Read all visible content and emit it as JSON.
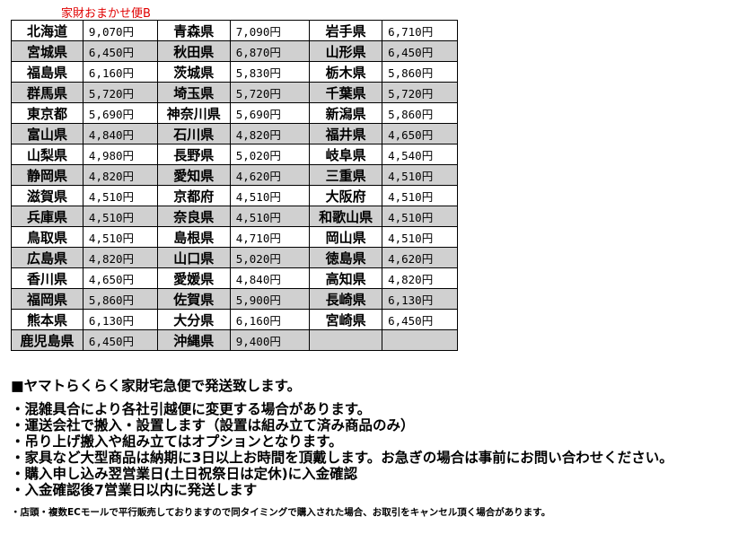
{
  "title": "家財おまかせ便B",
  "rows": [
    [
      [
        "北海道",
        "9,070円"
      ],
      [
        "青森県",
        "7,090円"
      ],
      [
        "岩手県",
        "6,710円"
      ]
    ],
    [
      [
        "宮城県",
        "6,450円"
      ],
      [
        "秋田県",
        "6,870円"
      ],
      [
        "山形県",
        "6,450円"
      ]
    ],
    [
      [
        "福島県",
        "6,160円"
      ],
      [
        "茨城県",
        "5,830円"
      ],
      [
        "栃木県",
        "5,860円"
      ]
    ],
    [
      [
        "群馬県",
        "5,720円"
      ],
      [
        "埼玉県",
        "5,720円"
      ],
      [
        "千葉県",
        "5,720円"
      ]
    ],
    [
      [
        "東京都",
        "5,690円"
      ],
      [
        "神奈川県",
        "5,690円"
      ],
      [
        "新潟県",
        "5,860円"
      ]
    ],
    [
      [
        "富山県",
        "4,840円"
      ],
      [
        "石川県",
        "4,820円"
      ],
      [
        "福井県",
        "4,650円"
      ]
    ],
    [
      [
        "山梨県",
        "4,980円"
      ],
      [
        "長野県",
        "5,020円"
      ],
      [
        "岐阜県",
        "4,540円"
      ]
    ],
    [
      [
        "静岡県",
        "4,820円"
      ],
      [
        "愛知県",
        "4,620円"
      ],
      [
        "三重県",
        "4,510円"
      ]
    ],
    [
      [
        "滋賀県",
        "4,510円"
      ],
      [
        "京都府",
        "4,510円"
      ],
      [
        "大阪府",
        "4,510円"
      ]
    ],
    [
      [
        "兵庫県",
        "4,510円"
      ],
      [
        "奈良県",
        "4,510円"
      ],
      [
        "和歌山県",
        "4,510円"
      ]
    ],
    [
      [
        "鳥取県",
        "4,510円"
      ],
      [
        "島根県",
        "4,710円"
      ],
      [
        "岡山県",
        "4,510円"
      ]
    ],
    [
      [
        "広島県",
        "4,820円"
      ],
      [
        "山口県",
        "5,020円"
      ],
      [
        "徳島県",
        "4,620円"
      ]
    ],
    [
      [
        "香川県",
        "4,650円"
      ],
      [
        "愛媛県",
        "4,840円"
      ],
      [
        "高知県",
        "4,820円"
      ]
    ],
    [
      [
        "福岡県",
        "5,860円"
      ],
      [
        "佐賀県",
        "5,900円"
      ],
      [
        "長崎県",
        "6,130円"
      ]
    ],
    [
      [
        "熊本県",
        "6,130円"
      ],
      [
        "大分県",
        "6,160円"
      ],
      [
        "宮崎県",
        "6,450円"
      ]
    ],
    [
      [
        "鹿児島県",
        "6,450円"
      ],
      [
        "沖縄県",
        "9,400円"
      ],
      [
        "",
        ""
      ]
    ]
  ],
  "notes": {
    "heading": "■ヤマトらくらく家財宅急便で発送致します。",
    "lines": [
      "・混雑具合により各社引越便に変更する場合があります。",
      "・運送会社で搬入・設置します（設置は組み立て済み商品のみ）",
      "・吊り上げ搬入や組み立てはオプションとなります。",
      "・家具など大型商品は納期に3日以上お時間を頂戴します。お急ぎの場合は事前にお問い合わせください。",
      "・購入申し込み翌営業日(土日祝祭日は定休)に入金確認",
      "・入金確認後7営業日以内に発送します"
    ],
    "footnote": "・店頭・複数ECモールで平行販売しておりますので同タイミングで購入された場合、お取引をキャンセル頂く場合があります。"
  },
  "colors": {
    "title": "#e00000",
    "alt_row": "#d0d0d0"
  }
}
